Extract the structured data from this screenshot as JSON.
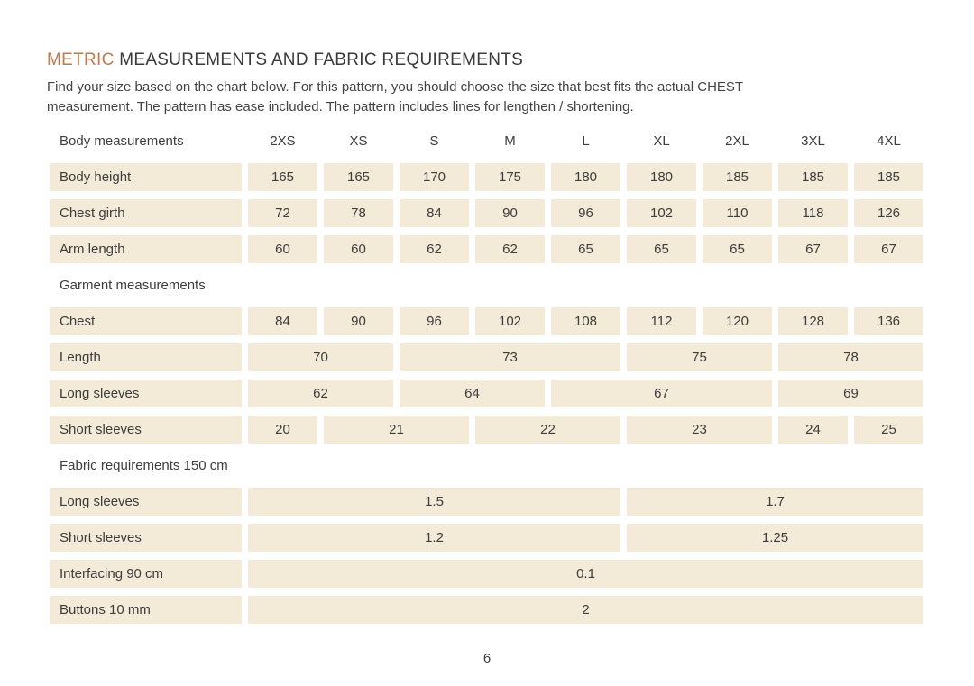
{
  "page": {
    "title_highlight": "METRIC",
    "title_rest": "MEASUREMENTS AND FABRIC REQUIREMENTS",
    "intro_line1": "Find your size based on the chart below. For this pattern, you should choose the size that best fits the actual CHEST",
    "intro_line2": "measurement. The pattern has ease included. The pattern includes lines for lengthen / shortening.",
    "page_number": "6",
    "colors": {
      "accent": "#c0794d",
      "cell_background": "#f3ead7",
      "text": "#3d3d3d"
    }
  },
  "table": {
    "header": {
      "label": "Body measurements",
      "sizes": [
        "2XS",
        "XS",
        "S",
        "M",
        "L",
        "XL",
        "2XL",
        "3XL",
        "4XL"
      ]
    },
    "sections": [
      {
        "heading": null,
        "rows": [
          {
            "label": "Body height",
            "cells": [
              {
                "v": "165",
                "span": 1
              },
              {
                "v": "165",
                "span": 1
              },
              {
                "v": "170",
                "span": 1
              },
              {
                "v": "175",
                "span": 1
              },
              {
                "v": "180",
                "span": 1
              },
              {
                "v": "180",
                "span": 1
              },
              {
                "v": "185",
                "span": 1
              },
              {
                "v": "185",
                "span": 1
              },
              {
                "v": "185",
                "span": 1
              }
            ]
          },
          {
            "label": "Chest girth",
            "cells": [
              {
                "v": "72",
                "span": 1
              },
              {
                "v": "78",
                "span": 1
              },
              {
                "v": "84",
                "span": 1
              },
              {
                "v": "90",
                "span": 1
              },
              {
                "v": "96",
                "span": 1
              },
              {
                "v": "102",
                "span": 1
              },
              {
                "v": "110",
                "span": 1
              },
              {
                "v": "118",
                "span": 1
              },
              {
                "v": "126",
                "span": 1
              }
            ]
          },
          {
            "label": "Arm length",
            "cells": [
              {
                "v": "60",
                "span": 1
              },
              {
                "v": "60",
                "span": 1
              },
              {
                "v": "62",
                "span": 1
              },
              {
                "v": "62",
                "span": 1
              },
              {
                "v": "65",
                "span": 1
              },
              {
                "v": "65",
                "span": 1
              },
              {
                "v": "65",
                "span": 1
              },
              {
                "v": "67",
                "span": 1
              },
              {
                "v": "67",
                "span": 1
              }
            ]
          }
        ]
      },
      {
        "heading": "Garment measurements",
        "rows": [
          {
            "label": "Chest",
            "cells": [
              {
                "v": "84",
                "span": 1
              },
              {
                "v": "90",
                "span": 1
              },
              {
                "v": "96",
                "span": 1
              },
              {
                "v": "102",
                "span": 1
              },
              {
                "v": "108",
                "span": 1
              },
              {
                "v": "112",
                "span": 1
              },
              {
                "v": "120",
                "span": 1
              },
              {
                "v": "128",
                "span": 1
              },
              {
                "v": "136",
                "span": 1
              }
            ]
          },
          {
            "label": "Length",
            "cells": [
              {
                "v": "70",
                "span": 2
              },
              {
                "v": "73",
                "span": 3
              },
              {
                "v": "75",
                "span": 2
              },
              {
                "v": "78",
                "span": 2
              }
            ]
          },
          {
            "label": "Long sleeves",
            "cells": [
              {
                "v": "62",
                "span": 2
              },
              {
                "v": "64",
                "span": 2
              },
              {
                "v": "67",
                "span": 3
              },
              {
                "v": "69",
                "span": 2
              }
            ]
          },
          {
            "label": "Short sleeves",
            "cells": [
              {
                "v": "20",
                "span": 1
              },
              {
                "v": "21",
                "span": 2
              },
              {
                "v": "22",
                "span": 2
              },
              {
                "v": "23",
                "span": 2
              },
              {
                "v": "24",
                "span": 1
              },
              {
                "v": "25",
                "span": 1
              }
            ]
          }
        ]
      },
      {
        "heading": "Fabric requirements 150 cm",
        "rows": [
          {
            "label": "Long sleeves",
            "cells": [
              {
                "v": "1.5",
                "span": 5
              },
              {
                "v": "1.7",
                "span": 4
              }
            ]
          },
          {
            "label": "Short sleeves",
            "cells": [
              {
                "v": "1.2",
                "span": 5
              },
              {
                "v": "1.25",
                "span": 4
              }
            ]
          },
          {
            "label": "Interfacing 90 cm",
            "cells": [
              {
                "v": "0.1",
                "span": 9
              }
            ]
          },
          {
            "label": "Buttons 10 mm",
            "cells": [
              {
                "v": "2",
                "span": 9
              }
            ]
          }
        ]
      }
    ]
  }
}
